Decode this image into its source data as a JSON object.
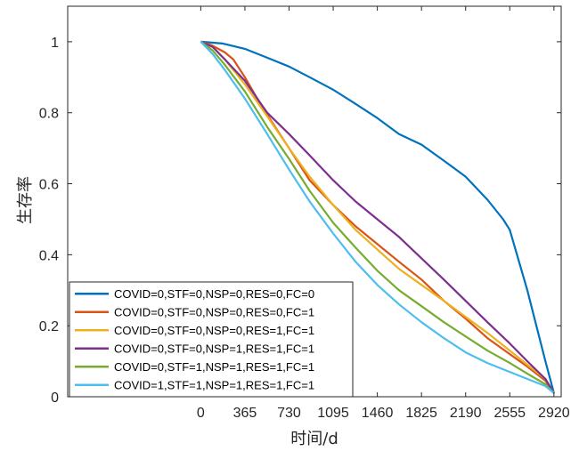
{
  "chart_data": {
    "type": "line",
    "xlabel": "时间/d",
    "ylabel": "生存率",
    "xlim": [
      -1100,
      2980
    ],
    "ylim": [
      0,
      1.1
    ],
    "xticks": [
      0,
      365,
      730,
      1095,
      1460,
      1825,
      2190,
      2555,
      2920
    ],
    "xtick_labels": [
      "0",
      "365",
      "730",
      "1095",
      "1460",
      "1825",
      "2190",
      "2555",
      "2920"
    ],
    "yticks": [
      0,
      0.2,
      0.4,
      0.6,
      0.8,
      1
    ],
    "ytick_labels": [
      "0",
      "0.2",
      "0.4",
      "0.6",
      "0.8",
      "1"
    ],
    "grid": false,
    "legend_position": "bottom-left",
    "series": [
      {
        "name": "COVID=0,STF=0,NSP=0,RES=0,FC=0",
        "color": "#0072BD",
        "x": [
          0,
          180,
          365,
          550,
          730,
          900,
          1095,
          1280,
          1460,
          1640,
          1825,
          2010,
          2190,
          2370,
          2500,
          2555,
          2700,
          2850,
          2920
        ],
        "y": [
          1.0,
          0.995,
          0.98,
          0.955,
          0.93,
          0.9,
          0.865,
          0.825,
          0.785,
          0.74,
          0.71,
          0.665,
          0.62,
          0.555,
          0.5,
          0.47,
          0.3,
          0.1,
          0.01
        ]
      },
      {
        "name": "COVID=0,STF=0,NSP=0,RES=0,FC=1",
        "color": "#D95319",
        "x": [
          0,
          90,
          200,
          270,
          365,
          500,
          730,
          900,
          1095,
          1280,
          1460,
          1640,
          1825,
          2010,
          2190,
          2370,
          2555,
          2700,
          2850,
          2920
        ],
        "y": [
          1.0,
          0.99,
          0.97,
          0.95,
          0.9,
          0.82,
          0.7,
          0.61,
          0.54,
          0.48,
          0.43,
          0.38,
          0.33,
          0.27,
          0.22,
          0.165,
          0.12,
          0.085,
          0.045,
          0.01
        ]
      },
      {
        "name": "COVID=0,STF=0,NSP=0,RES=1,FC=1",
        "color": "#EDB120",
        "x": [
          0,
          100,
          200,
          365,
          550,
          730,
          900,
          1095,
          1280,
          1460,
          1640,
          1825,
          2010,
          2190,
          2370,
          2555,
          2700,
          2850,
          2920
        ],
        "y": [
          1.0,
          0.985,
          0.95,
          0.88,
          0.79,
          0.7,
          0.62,
          0.54,
          0.47,
          0.415,
          0.36,
          0.315,
          0.27,
          0.225,
          0.18,
          0.13,
          0.09,
          0.05,
          0.01
        ]
      },
      {
        "name": "COVID=0,STF=0,NSP=1,RES=1,FC=1",
        "color": "#7E2F8E",
        "x": [
          0,
          100,
          200,
          365,
          550,
          730,
          900,
          1095,
          1280,
          1460,
          1640,
          1825,
          2010,
          2190,
          2370,
          2555,
          2700,
          2850,
          2920
        ],
        "y": [
          1.0,
          0.985,
          0.95,
          0.89,
          0.8,
          0.74,
          0.68,
          0.61,
          0.55,
          0.5,
          0.45,
          0.39,
          0.33,
          0.27,
          0.21,
          0.15,
          0.1,
          0.05,
          0.01
        ]
      },
      {
        "name": "COVID=0,STF=1,NSP=1,RES=1,FC=1",
        "color": "#77AC30",
        "x": [
          0,
          100,
          200,
          365,
          550,
          730,
          900,
          1095,
          1280,
          1460,
          1640,
          1825,
          2010,
          2190,
          2370,
          2555,
          2700,
          2850,
          2920
        ],
        "y": [
          1.0,
          0.975,
          0.935,
          0.86,
          0.76,
          0.67,
          0.58,
          0.49,
          0.42,
          0.355,
          0.3,
          0.255,
          0.21,
          0.17,
          0.13,
          0.095,
          0.065,
          0.035,
          0.01
        ]
      },
      {
        "name": "COVID=1,STF=1,NSP=1,RES=1,FC=1",
        "color": "#4DBEEE",
        "x": [
          0,
          100,
          200,
          365,
          550,
          730,
          900,
          1095,
          1280,
          1460,
          1640,
          1825,
          2010,
          2190,
          2370,
          2555,
          2700,
          2850,
          2920
        ],
        "y": [
          1.0,
          0.965,
          0.92,
          0.84,
          0.74,
          0.64,
          0.55,
          0.46,
          0.38,
          0.315,
          0.26,
          0.21,
          0.165,
          0.125,
          0.095,
          0.07,
          0.05,
          0.03,
          0.01
        ]
      }
    ]
  }
}
